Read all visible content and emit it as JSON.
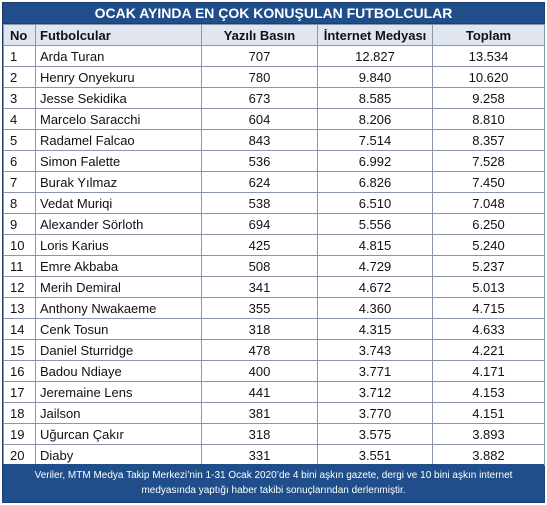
{
  "title": "OCAK AYINDA EN ÇOK KONUŞULAN FUTBOLCULAR",
  "headers": {
    "no": "No",
    "player": "Futbolcular",
    "print": "Yazılı Basın",
    "internet": "İnternet Medyası",
    "total": "Toplam"
  },
  "rows": [
    {
      "no": "1",
      "name": "Arda Turan",
      "print": "707",
      "internet": "12.827",
      "total": "13.534"
    },
    {
      "no": "2",
      "name": "Henry Onyekuru",
      "print": "780",
      "internet": "9.840",
      "total": "10.620"
    },
    {
      "no": "3",
      "name": "Jesse Sekidika",
      "print": "673",
      "internet": "8.585",
      "total": "9.258"
    },
    {
      "no": "4",
      "name": "Marcelo Saracchi",
      "print": "604",
      "internet": "8.206",
      "total": "8.810"
    },
    {
      "no": "5",
      "name": "Radamel Falcao",
      "print": "843",
      "internet": "7.514",
      "total": "8.357"
    },
    {
      "no": "6",
      "name": "Simon Falette",
      "print": "536",
      "internet": "6.992",
      "total": "7.528"
    },
    {
      "no": "7",
      "name": "Burak Yılmaz",
      "print": "624",
      "internet": "6.826",
      "total": "7.450"
    },
    {
      "no": "8",
      "name": "Vedat Muriqi",
      "print": "538",
      "internet": "6.510",
      "total": "7.048"
    },
    {
      "no": "9",
      "name": "Alexander Sörloth",
      "print": "694",
      "internet": "5.556",
      "total": "6.250"
    },
    {
      "no": "10",
      "name": "Loris Karius",
      "print": "425",
      "internet": "4.815",
      "total": "5.240"
    },
    {
      "no": "11",
      "name": "Emre Akbaba",
      "print": "508",
      "internet": "4.729",
      "total": "5.237"
    },
    {
      "no": "12",
      "name": "Merih Demiral",
      "print": "341",
      "internet": "4.672",
      "total": "5.013"
    },
    {
      "no": "13",
      "name": "Anthony Nwakaeme",
      "print": "355",
      "internet": "4.360",
      "total": "4.715"
    },
    {
      "no": "14",
      "name": "Cenk Tosun",
      "print": "318",
      "internet": "4.315",
      "total": "4.633"
    },
    {
      "no": "15",
      "name": "Daniel Sturridge",
      "print": "478",
      "internet": "3.743",
      "total": "4.221"
    },
    {
      "no": "16",
      "name": "Badou Ndiaye",
      "print": "400",
      "internet": "3.771",
      "total": "4.171"
    },
    {
      "no": "17",
      "name": "Jeremaine Lens",
      "print": "441",
      "internet": "3.712",
      "total": "4.153"
    },
    {
      "no": "18",
      "name": "Jailson",
      "print": "381",
      "internet": "3.770",
      "total": "4.151"
    },
    {
      "no": "19",
      "name": "Uğurcan Çakır",
      "print": "318",
      "internet": "3.575",
      "total": "3.893"
    },
    {
      "no": "20",
      "name": "Diaby",
      "print": "331",
      "internet": "3.551",
      "total": "3.882"
    }
  ],
  "footer": {
    "line1": "Veriler, MTM Medya Takip Merkezi’nin  1-31 Ocak 2020’de 4 bini aşkın gazete, dergi ve 10 bini aşkın internet",
    "line2": "medyasında yaptığı haber takibi sonuçlarından derlenmiştir."
  },
  "colors": {
    "header_bg": "#1f4e8a",
    "column_header_bg": "#dfe6f0"
  }
}
